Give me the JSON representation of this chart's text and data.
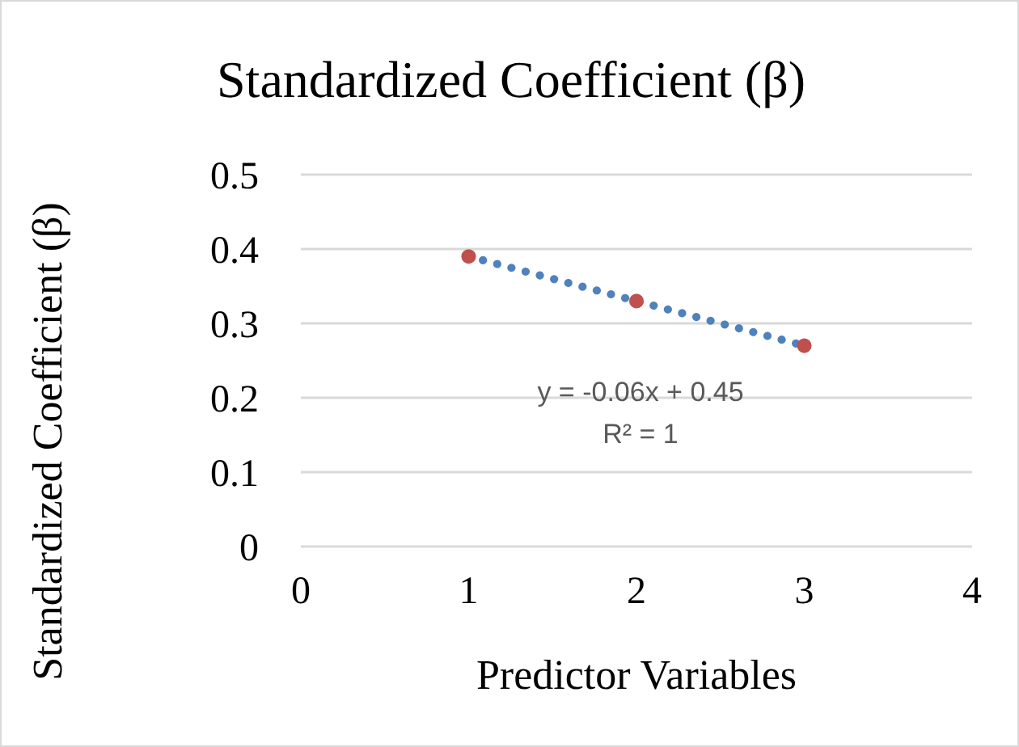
{
  "chart_data": {
    "type": "scatter",
    "title": "Standardized Coefficient (β)",
    "xlabel": "Predictor Variables",
    "ylabel": "Standardized Coefficient (β)",
    "xlim": [
      0,
      4
    ],
    "xticks": [
      0,
      1,
      2,
      3,
      4
    ],
    "ylim": [
      0,
      0.5
    ],
    "yticks": [
      0,
      0.1,
      0.2,
      0.3,
      0.4,
      0.5
    ],
    "grid": "y",
    "legend": false,
    "series": [
      {
        "color": "#c0504d",
        "marker": "circle",
        "x": [
          1,
          2,
          3
        ],
        "values": [
          0.39,
          0.33,
          0.27
        ]
      },
      {
        "type": "line",
        "color": "#4f81bd",
        "line_style": "dotted",
        "marker": "none",
        "x": [
          1,
          3
        ],
        "values": [
          0.39,
          0.27
        ]
      }
    ],
    "annotations": [
      "y = -0.06x + 0.45",
      "R² = 1"
    ]
  }
}
